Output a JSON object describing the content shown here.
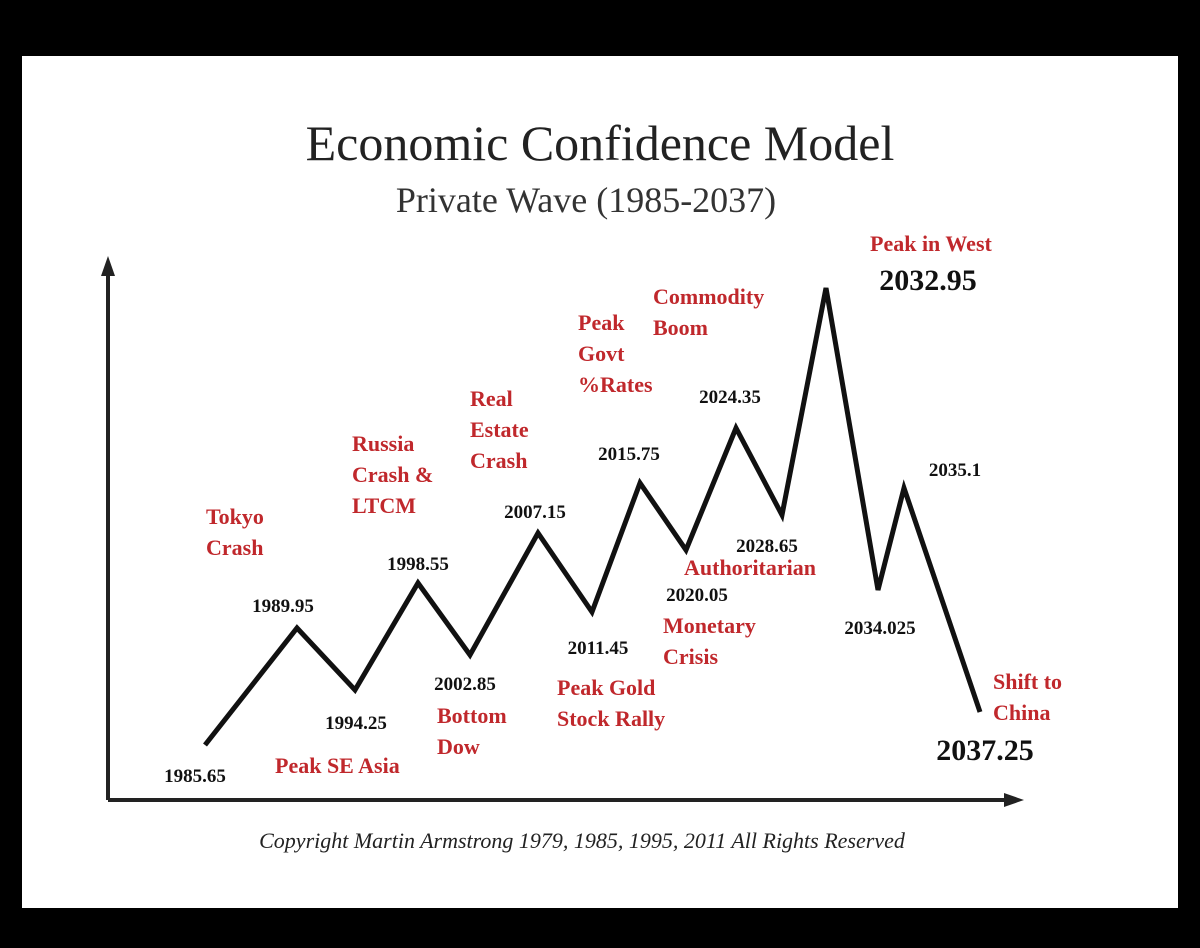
{
  "title": "Economic Confidence Model",
  "subtitle": "Private Wave (1985-2037)",
  "points": [
    {
      "label": "1985.65"
    },
    {
      "label": "1989.95"
    },
    {
      "label": "1994.25"
    },
    {
      "label": "1998.55"
    },
    {
      "label": "2002.85"
    },
    {
      "label": "2007.15"
    },
    {
      "label": "2011.45"
    },
    {
      "label": "2015.75"
    },
    {
      "label": "2020.05"
    },
    {
      "label": "2024.35"
    },
    {
      "label": "2028.65"
    },
    {
      "label": "2032.95"
    },
    {
      "label": "2034.025"
    },
    {
      "label": "2035.1"
    },
    {
      "label": "2037.25"
    }
  ],
  "annotations": [
    {
      "lines": [
        "Tokyo",
        "Crash"
      ]
    },
    {
      "lines": [
        "Peak SE Asia"
      ]
    },
    {
      "lines": [
        "Russia",
        "Crash &",
        "LTCM"
      ]
    },
    {
      "lines": [
        "Bottom",
        "Dow"
      ]
    },
    {
      "lines": [
        "Real",
        "Estate",
        "Crash"
      ]
    },
    {
      "lines": [
        "Peak Gold",
        "Stock Rally"
      ]
    },
    {
      "lines": [
        "Peak",
        "Govt",
        "%Rates"
      ]
    },
    {
      "lines": [
        "Monetary",
        "Crisis"
      ]
    },
    {
      "lines": [
        "Commodity",
        "Boom"
      ]
    },
    {
      "lines": [
        "Authoritarian"
      ]
    },
    {
      "lines": [
        "Peak in West"
      ]
    },
    {
      "lines": [
        "Shift to",
        "China"
      ]
    }
  ],
  "copyright": "Copyright Martin Armstrong 1979, 1985, 1995, 2011 All Rights Reserved"
}
